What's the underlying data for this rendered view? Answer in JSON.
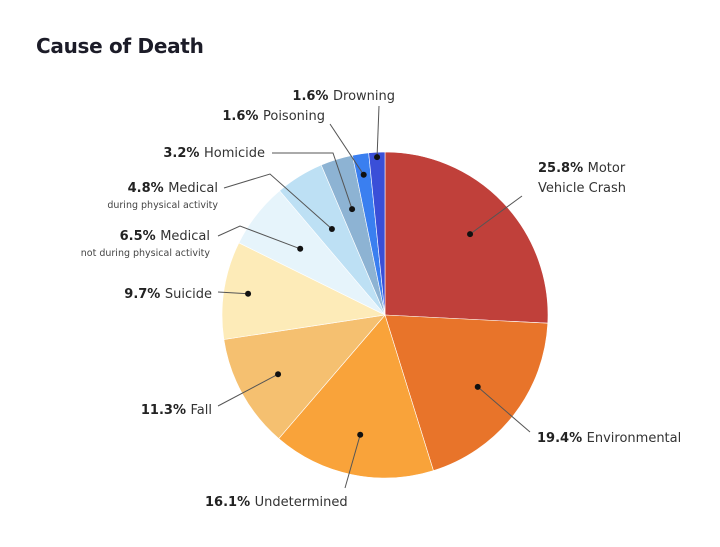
{
  "chart_data": {
    "type": "pie",
    "title": "Cause of Death",
    "start": "12 o'clock, clockwise",
    "slices": [
      {
        "label": "Motor Vehicle Crash",
        "label_lines": [
          "Motor",
          "Vehicle Crash"
        ],
        "pct_text": "25.8%",
        "value": 25.8,
        "color": "#c0403a"
      },
      {
        "label": "Environmental",
        "label_lines": [
          "Environmental"
        ],
        "pct_text": "19.4%",
        "value": 19.4,
        "color": "#e8742a"
      },
      {
        "label": "Undetermined",
        "label_lines": [
          "Undetermined"
        ],
        "pct_text": "16.1%",
        "value": 16.1,
        "color": "#f9a33a"
      },
      {
        "label": "Fall",
        "label_lines": [
          "Fall"
        ],
        "pct_text": "11.3%",
        "value": 11.3,
        "color": "#f5c070"
      },
      {
        "label": "Suicide",
        "label_lines": [
          "Suicide"
        ],
        "pct_text": "9.7%",
        "value": 9.7,
        "color": "#fdebb8"
      },
      {
        "label": "Medical not during physical activity",
        "label_lines": [
          "Medical"
        ],
        "sub": "not during physical activity",
        "pct_text": "6.5%",
        "value": 6.5,
        "color": "#e6f4fb"
      },
      {
        "label": "Medical during physical activity",
        "label_lines": [
          "Medical"
        ],
        "sub": "during physical activity",
        "pct_text": "4.8%",
        "value": 4.8,
        "color": "#bde0f4"
      },
      {
        "label": "Homicide",
        "label_lines": [
          "Homicide"
        ],
        "pct_text": "3.2%",
        "value": 3.2,
        "color": "#8db3d3"
      },
      {
        "label": "Poisoning",
        "label_lines": [
          "Poisoning"
        ],
        "pct_text": "1.6%",
        "value": 1.6,
        "color": "#3a7ff0"
      },
      {
        "label": "Drowning",
        "label_lines": [
          "Drowning"
        ],
        "pct_text": "1.6%",
        "value": 1.6,
        "color": "#3a4fd8"
      }
    ]
  }
}
